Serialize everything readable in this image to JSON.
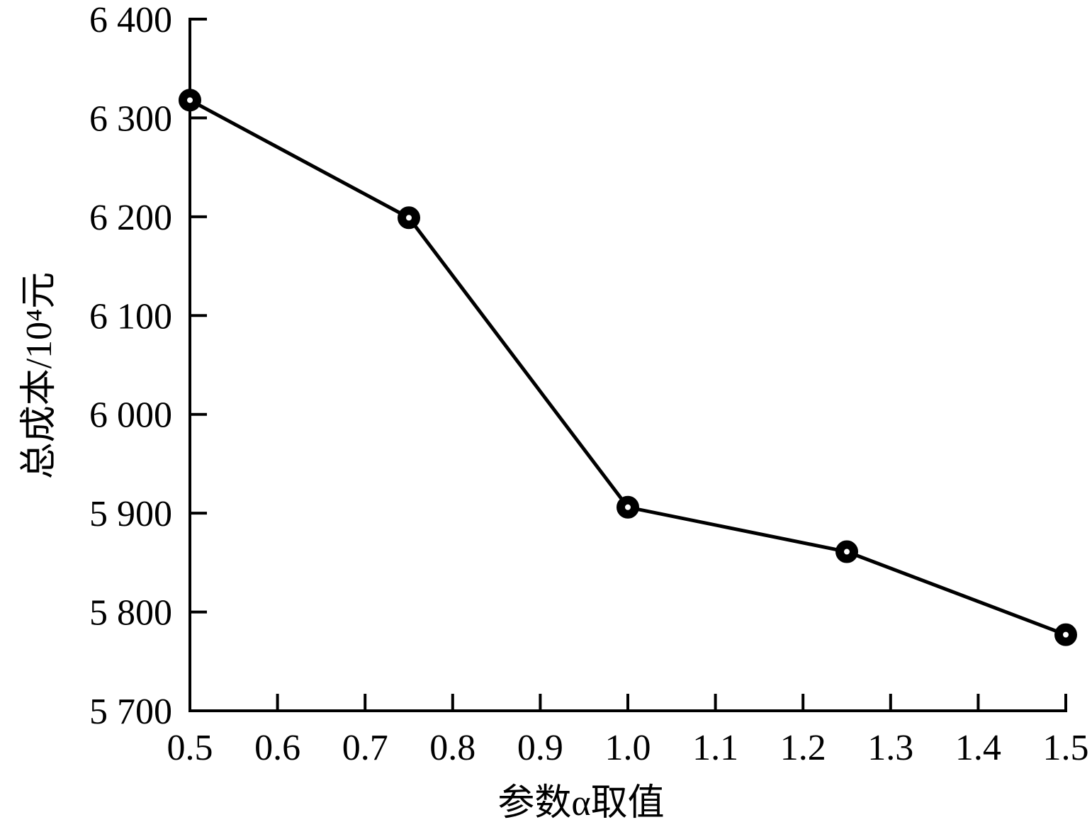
{
  "chart_data": {
    "type": "line",
    "xlabel": "参数α取值",
    "ylabel": "总成本/10⁴元",
    "x": [
      0.5,
      0.75,
      1.0,
      1.25,
      1.5
    ],
    "series": [
      {
        "color": "#000000",
        "values": [
          6318,
          6199,
          5906,
          5861,
          5777
        ]
      }
    ],
    "xlim": [
      0.5,
      1.5
    ],
    "ylim": [
      5700,
      6400
    ],
    "xticks": [
      0.5,
      0.6,
      0.7,
      0.8,
      0.9,
      {
        "value": 1,
        "label": "1.0"
      },
      1.1,
      1.2,
      1.3,
      1.4,
      1.5
    ],
    "yticks": [
      {
        "value": 5700,
        "label": "5 700"
      },
      {
        "value": 5800,
        "label": "5 800"
      },
      {
        "value": 5900,
        "label": "5 900"
      },
      {
        "value": 6000,
        "label": "6 000"
      },
      {
        "value": 6100,
        "label": "6 100"
      },
      {
        "value": 6200,
        "label": "6 200"
      },
      {
        "value": 6300,
        "label": "6 300"
      },
      {
        "value": 6400,
        "label": "6 400"
      }
    ],
    "grid": false
  }
}
